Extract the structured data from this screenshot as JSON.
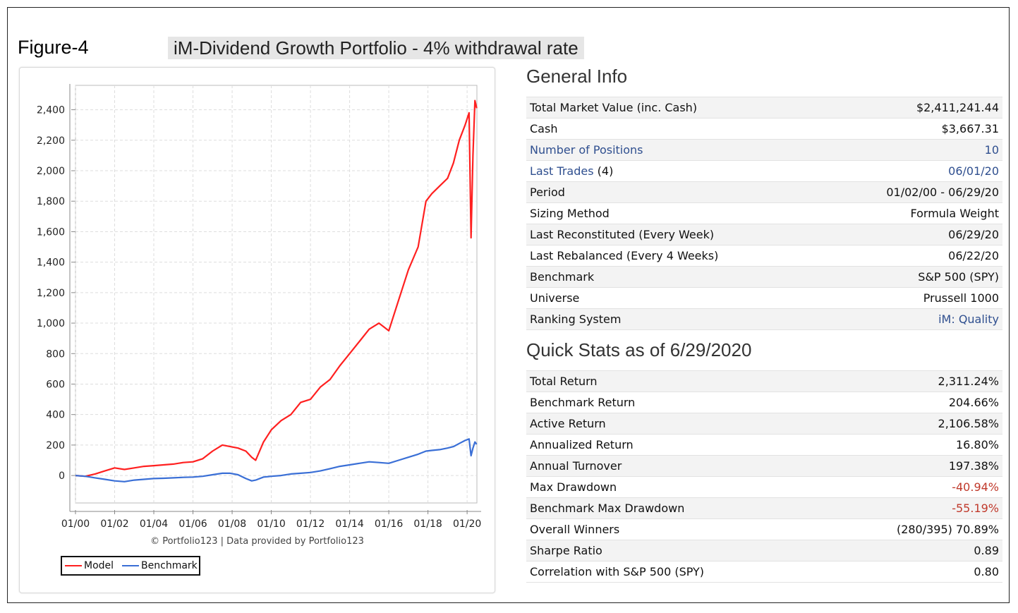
{
  "figure_label": "Figure-4",
  "figure_title": "iM-Dividend Growth Portfolio - 4% withdrawal rate",
  "credit": "© Portfolio123 | Data provided by Portfolio123",
  "legend": [
    {
      "name": "Model",
      "color": "#ff2020"
    },
    {
      "name": "Benchmark",
      "color": "#3a6fd6"
    }
  ],
  "general_info": {
    "title": "General Info",
    "rows": [
      {
        "label": "Total Market Value (inc. Cash)",
        "value": "$2,411,241.44",
        "link": false
      },
      {
        "label": "Cash",
        "value": "$3,667.31",
        "link": false
      },
      {
        "label": "Number of Positions",
        "value": "10",
        "link": true
      },
      {
        "label": "Last Trades",
        "label_suffix": " (4)",
        "value": "06/01/20",
        "link": true
      },
      {
        "label": "Period",
        "value": "01/02/00 - 06/29/20",
        "link": false
      },
      {
        "label": "Sizing Method",
        "value": "Formula Weight",
        "link": false
      },
      {
        "label": "Last Reconstituted (Every Week)",
        "value": "06/29/20",
        "link": false
      },
      {
        "label": "Last Rebalanced (Every 4 Weeks)",
        "value": "06/22/20",
        "link": false
      },
      {
        "label": "Benchmark",
        "value": "S&P 500 (SPY)",
        "link": false
      },
      {
        "label": "Universe",
        "value": "Prussell 1000",
        "link": false
      },
      {
        "label": "Ranking System",
        "value": "iM: Quality",
        "link": false,
        "value_link": true
      }
    ]
  },
  "quick_stats": {
    "title": "Quick Stats as of 6/29/2020",
    "rows": [
      {
        "label": "Total Return",
        "value": "2,311.24%"
      },
      {
        "label": "Benchmark Return",
        "value": "204.66%"
      },
      {
        "label": "Active Return",
        "value": "2,106.58%"
      },
      {
        "label": "Annualized Return",
        "value": "16.80%"
      },
      {
        "label": "Annual Turnover",
        "value": "197.38%"
      },
      {
        "label": "Max Drawdown",
        "value": "-40.94%",
        "negative": true
      },
      {
        "label": "Benchmark Max Drawdown",
        "value": "-55.19%",
        "negative": true
      },
      {
        "label": "Overall Winners",
        "value": "(280/395) 70.89%"
      },
      {
        "label": "Sharpe Ratio",
        "value": "0.89"
      },
      {
        "label": "Correlation with S&P 500 (SPY)",
        "value": "0.80"
      }
    ]
  },
  "chart_data": {
    "type": "line",
    "x_ticks": [
      "01/00",
      "01/02",
      "01/04",
      "01/06",
      "01/08",
      "01/10",
      "01/12",
      "01/14",
      "01/16",
      "01/18",
      "01/20"
    ],
    "y_ticks": [
      0,
      200,
      400,
      600,
      800,
      1000,
      1200,
      1400,
      1600,
      1800,
      2000,
      2200,
      2400
    ],
    "y_tick_labels": [
      "0",
      "200",
      "400",
      "600",
      "800",
      "1,000",
      "1,200",
      "1,400",
      "1,600",
      "1,800",
      "2,000",
      "2,200",
      "2,400"
    ],
    "xlim": [
      2000.0,
      2020.5
    ],
    "ylim": [
      -180,
      2560
    ],
    "grid": true,
    "legend_position": "bottom-left",
    "series": [
      {
        "name": "Model",
        "color": "#ff2020",
        "x": [
          2000.0,
          2000.5,
          2001.0,
          2001.5,
          2002.0,
          2002.5,
          2003.0,
          2003.5,
          2004.0,
          2004.5,
          2005.0,
          2005.5,
          2006.0,
          2006.5,
          2007.0,
          2007.5,
          2007.9,
          2008.3,
          2008.7,
          2009.0,
          2009.2,
          2009.6,
          2010.0,
          2010.5,
          2011.0,
          2011.5,
          2012.0,
          2012.5,
          2013.0,
          2013.5,
          2014.0,
          2014.5,
          2015.0,
          2015.5,
          2016.0,
          2016.5,
          2017.0,
          2017.5,
          2017.9,
          2018.2,
          2018.6,
          2019.0,
          2019.3,
          2019.6,
          2019.9,
          2020.1,
          2020.2,
          2020.3,
          2020.4,
          2020.49
        ],
        "y": [
          0,
          -5,
          10,
          30,
          50,
          40,
          50,
          60,
          65,
          70,
          75,
          85,
          90,
          110,
          160,
          200,
          190,
          180,
          160,
          120,
          100,
          220,
          300,
          360,
          400,
          480,
          500,
          580,
          630,
          720,
          800,
          880,
          960,
          1000,
          950,
          1150,
          1350,
          1500,
          1800,
          1850,
          1900,
          1950,
          2050,
          2200,
          2300,
          2380,
          1560,
          2100,
          2460,
          2410
        ]
      },
      {
        "name": "Benchmark",
        "color": "#3a6fd6",
        "x": [
          2000.0,
          2000.5,
          2001.0,
          2001.5,
          2002.0,
          2002.5,
          2003.0,
          2003.5,
          2004.0,
          2004.5,
          2005.0,
          2005.5,
          2006.0,
          2006.5,
          2007.0,
          2007.5,
          2007.9,
          2008.3,
          2008.7,
          2009.0,
          2009.2,
          2009.6,
          2010.0,
          2010.5,
          2011.0,
          2011.5,
          2012.0,
          2012.5,
          2013.0,
          2013.5,
          2014.0,
          2014.5,
          2015.0,
          2015.5,
          2016.0,
          2016.5,
          2017.0,
          2017.5,
          2017.9,
          2018.2,
          2018.6,
          2019.0,
          2019.3,
          2019.6,
          2019.9,
          2020.1,
          2020.2,
          2020.3,
          2020.4,
          2020.49
        ],
        "y": [
          0,
          -5,
          -15,
          -25,
          -35,
          -40,
          -30,
          -25,
          -20,
          -18,
          -15,
          -12,
          -10,
          -5,
          5,
          15,
          15,
          5,
          -20,
          -35,
          -30,
          -10,
          -5,
          0,
          10,
          15,
          20,
          30,
          45,
          60,
          70,
          80,
          90,
          85,
          80,
          100,
          120,
          140,
          160,
          165,
          170,
          180,
          190,
          210,
          230,
          240,
          130,
          180,
          220,
          205
        ]
      }
    ]
  }
}
